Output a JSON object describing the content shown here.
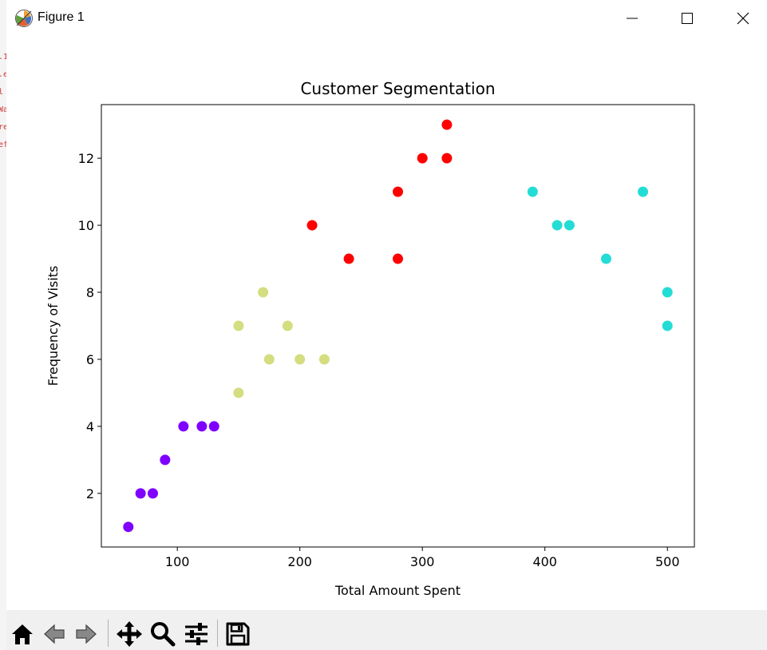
{
  "window": {
    "title": "Figure 1"
  },
  "chart_data": {
    "type": "scatter",
    "title": "Customer Segmentation",
    "xlabel": "Total Amount Spent",
    "ylabel": "Frequency of Visits",
    "xlim": [
      38,
      522
    ],
    "ylim": [
      0.4,
      13.6
    ],
    "xticks": [
      100,
      200,
      300,
      400,
      500
    ],
    "yticks": [
      2,
      4,
      6,
      8,
      10,
      12
    ],
    "grid": false,
    "series": [
      {
        "color": "#7f00ff",
        "points": [
          [
            60,
            1
          ],
          [
            70,
            2
          ],
          [
            80,
            2
          ],
          [
            90,
            3
          ],
          [
            105,
            4
          ],
          [
            120,
            4
          ],
          [
            130,
            4
          ]
        ]
      },
      {
        "color": "#d4dd80",
        "points": [
          [
            150,
            5
          ],
          [
            150,
            7
          ],
          [
            170,
            8
          ],
          [
            175,
            6
          ],
          [
            190,
            7
          ],
          [
            200,
            6
          ],
          [
            220,
            6
          ]
        ]
      },
      {
        "color": "#ff0000",
        "points": [
          [
            210,
            10
          ],
          [
            240,
            9
          ],
          [
            280,
            11
          ],
          [
            280,
            9
          ],
          [
            300,
            12
          ],
          [
            320,
            13
          ],
          [
            320,
            12
          ]
        ]
      },
      {
        "color": "#24dcd6",
        "points": [
          [
            390,
            11
          ],
          [
            410,
            10
          ],
          [
            420,
            10
          ],
          [
            450,
            9
          ],
          [
            480,
            11
          ],
          [
            500,
            8
          ],
          [
            500,
            7
          ]
        ]
      }
    ]
  },
  "toolbar": {
    "buttons": [
      {
        "name": "home",
        "icon": "home-icon"
      },
      {
        "name": "back",
        "icon": "arrow-left-icon"
      },
      {
        "name": "forward",
        "icon": "arrow-right-icon"
      },
      {
        "name": "pan",
        "icon": "move-icon"
      },
      {
        "name": "zoom",
        "icon": "magnifier-icon"
      },
      {
        "name": "configure-subplots",
        "icon": "sliders-icon"
      },
      {
        "name": "save",
        "icon": "floppy-disk-icon"
      }
    ]
  }
}
